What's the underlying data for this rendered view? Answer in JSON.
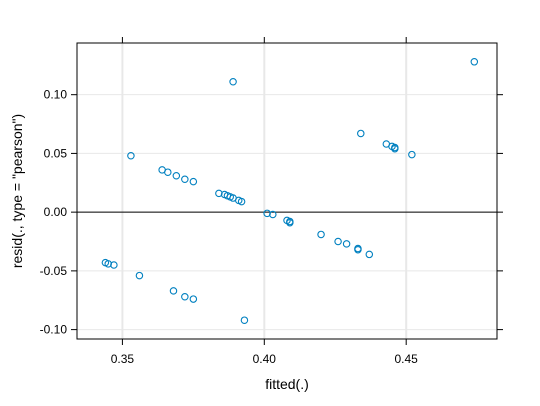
{
  "chart_data": {
    "type": "scatter",
    "title": "",
    "xlabel": "fitted(.)",
    "ylabel": "resid(., type = \"pearson\")",
    "xlim": [
      0.334,
      0.482
    ],
    "ylim": [
      -0.108,
      0.144
    ],
    "xticks": [
      0.35,
      0.4,
      0.45
    ],
    "xtick_labels": [
      "0.35",
      "0.40",
      "0.45"
    ],
    "yticks": [
      -0.1,
      -0.05,
      0.0,
      0.05,
      0.1
    ],
    "ytick_labels": [
      "-0.10",
      "-0.05",
      "0.00",
      "0.05",
      "0.10"
    ],
    "reference_line_y": 0,
    "grid": true,
    "colors": {
      "point": "#0080c0",
      "grid": "#e8e8e8",
      "axis": "#000000"
    },
    "series": [
      {
        "points": [
          [
            0.344,
            -0.043
          ],
          [
            0.345,
            -0.044
          ],
          [
            0.347,
            -0.045
          ],
          [
            0.353,
            0.048
          ],
          [
            0.356,
            -0.054
          ],
          [
            0.364,
            0.036
          ],
          [
            0.366,
            0.034
          ],
          [
            0.368,
            -0.067
          ],
          [
            0.369,
            0.031
          ],
          [
            0.372,
            0.028
          ],
          [
            0.372,
            -0.072
          ],
          [
            0.375,
            0.026
          ],
          [
            0.375,
            -0.074
          ],
          [
            0.384,
            0.016
          ],
          [
            0.386,
            0.015
          ],
          [
            0.387,
            0.014
          ],
          [
            0.388,
            0.013
          ],
          [
            0.389,
            0.111
          ],
          [
            0.389,
            0.012
          ],
          [
            0.391,
            0.01
          ],
          [
            0.392,
            0.009
          ],
          [
            0.393,
            -0.092
          ],
          [
            0.401,
            -0.001
          ],
          [
            0.403,
            -0.002
          ],
          [
            0.408,
            -0.007
          ],
          [
            0.409,
            -0.008
          ],
          [
            0.409,
            -0.009
          ],
          [
            0.42,
            -0.019
          ],
          [
            0.426,
            -0.025
          ],
          [
            0.429,
            -0.027
          ],
          [
            0.433,
            -0.031
          ],
          [
            0.433,
            -0.032
          ],
          [
            0.434,
            0.067
          ],
          [
            0.437,
            -0.036
          ],
          [
            0.443,
            0.058
          ],
          [
            0.445,
            0.056
          ],
          [
            0.446,
            0.055
          ],
          [
            0.446,
            0.054
          ],
          [
            0.452,
            0.049
          ],
          [
            0.474,
            0.128
          ]
        ]
      }
    ]
  }
}
